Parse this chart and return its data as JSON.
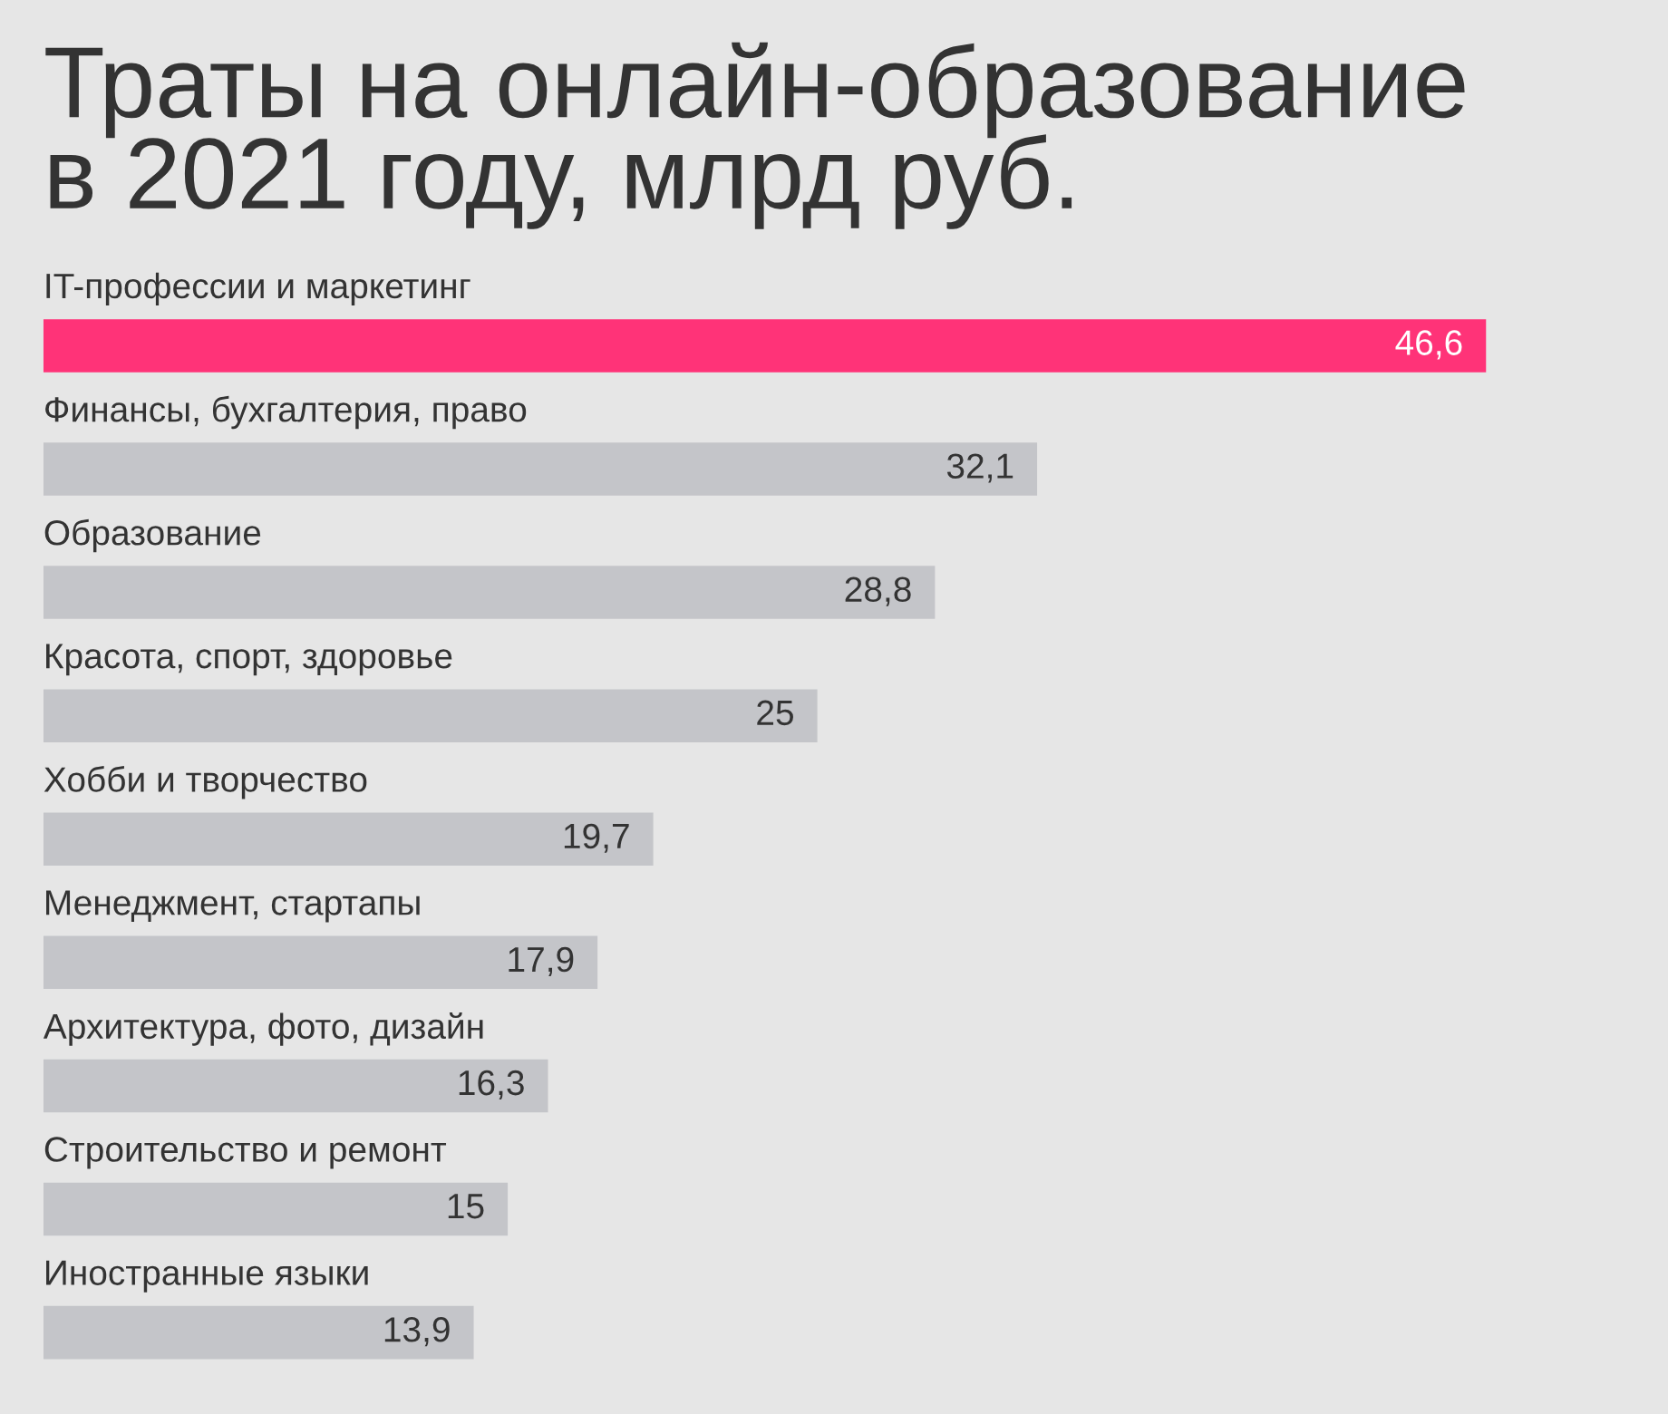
{
  "chart_data": {
    "type": "bar",
    "orientation": "horizontal",
    "title": "Траты на онлайн-образование\nв 2021 году, млрд руб.",
    "categories": [
      "IT-профессии и маркетинг",
      "Финансы, бухгалтерия, право",
      "Образование",
      "Красота, спорт, здоровье",
      "Хобби и творчество",
      "Менеджмент, стартапы",
      "Архитектура, фото, дизайн",
      "Строительство и ремонт",
      "Иностранные языки"
    ],
    "values": [
      46.6,
      32.1,
      28.8,
      25,
      19.7,
      17.9,
      16.3,
      15,
      13.9
    ],
    "value_labels": [
      "46,6",
      "32,1",
      "28,8",
      "25",
      "19,7",
      "17,9",
      "16,3",
      "15",
      "13,9"
    ],
    "colors": [
      "#ff3378",
      "#c4c5c9",
      "#c4c5c9",
      "#c4c5c9",
      "#c4c5c9",
      "#c4c5c9",
      "#c4c5c9",
      "#c4c5c9",
      "#c4c5c9"
    ]
  }
}
